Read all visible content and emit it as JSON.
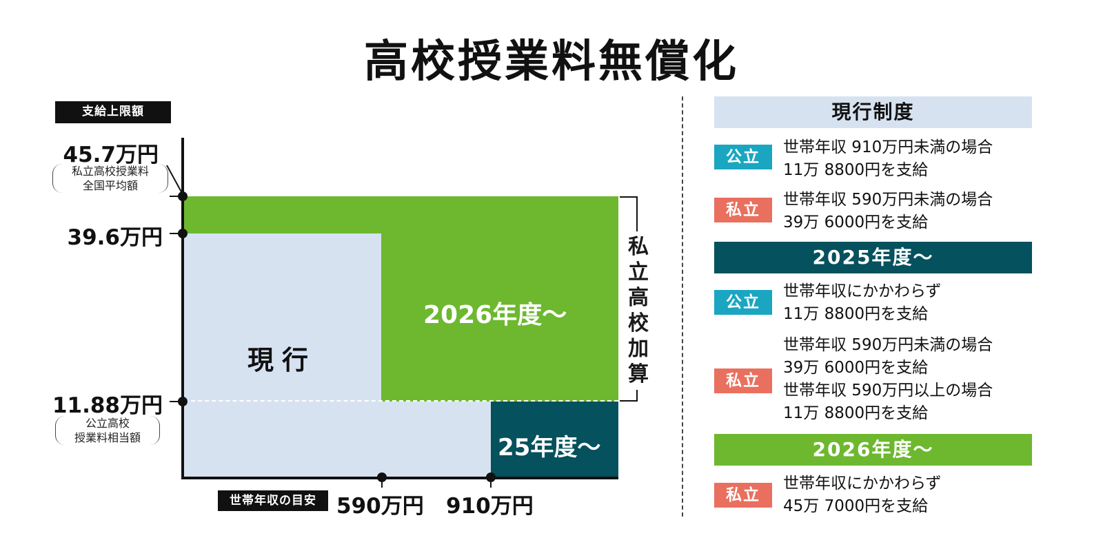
{
  "title": "高校授業料無償化",
  "chart": {
    "y_axis_tag": "支給上限額",
    "x_axis_tag": "世帯年収の目安",
    "y_values": {
      "top": "45.7万円",
      "top_note": [
        "私立高校授業料",
        "全国平均額"
      ],
      "mid": "39.6万円",
      "low": "11.88万円",
      "low_note": [
        "公立高校",
        "授業料相当額"
      ]
    },
    "x_values": [
      "590万円",
      "910万円"
    ],
    "regions": {
      "current": "現行",
      "y2026": "2026年度〜",
      "y2025": "25年度〜"
    },
    "bracket_label": [
      "私",
      "立",
      "高",
      "校",
      "加",
      "算"
    ],
    "colors": {
      "current": "#d7e2f1",
      "y2026": "#6db82f",
      "y2025": "#05515d",
      "public": "#1aa6c1",
      "private": "#e9705e"
    }
  },
  "legend": {
    "current": {
      "header": "現行制度",
      "public_badge": "公立",
      "public_lines": [
        "世帯年収 910万円未満の場合",
        "11万 8800円を支給"
      ],
      "private_badge": "私立",
      "private_lines": [
        "世帯年収 590万円未満の場合",
        "39万 6000円を支給"
      ]
    },
    "y2025": {
      "header": "2025年度〜",
      "public_badge": "公立",
      "public_lines": [
        "世帯年収にかかわらず",
        "11万 8800円を支給"
      ],
      "private_badge": "私立",
      "private_lines": [
        "世帯年収 590万円未満の場合",
        "39万 6000円を支給",
        "世帯年収 590万円以上の場合",
        "11万 8800円を支給"
      ]
    },
    "y2026": {
      "header": "2026年度〜",
      "private_badge": "私立",
      "private_lines": [
        "世帯年収にかかわらず",
        "45万 7000円を支給"
      ]
    }
  }
}
